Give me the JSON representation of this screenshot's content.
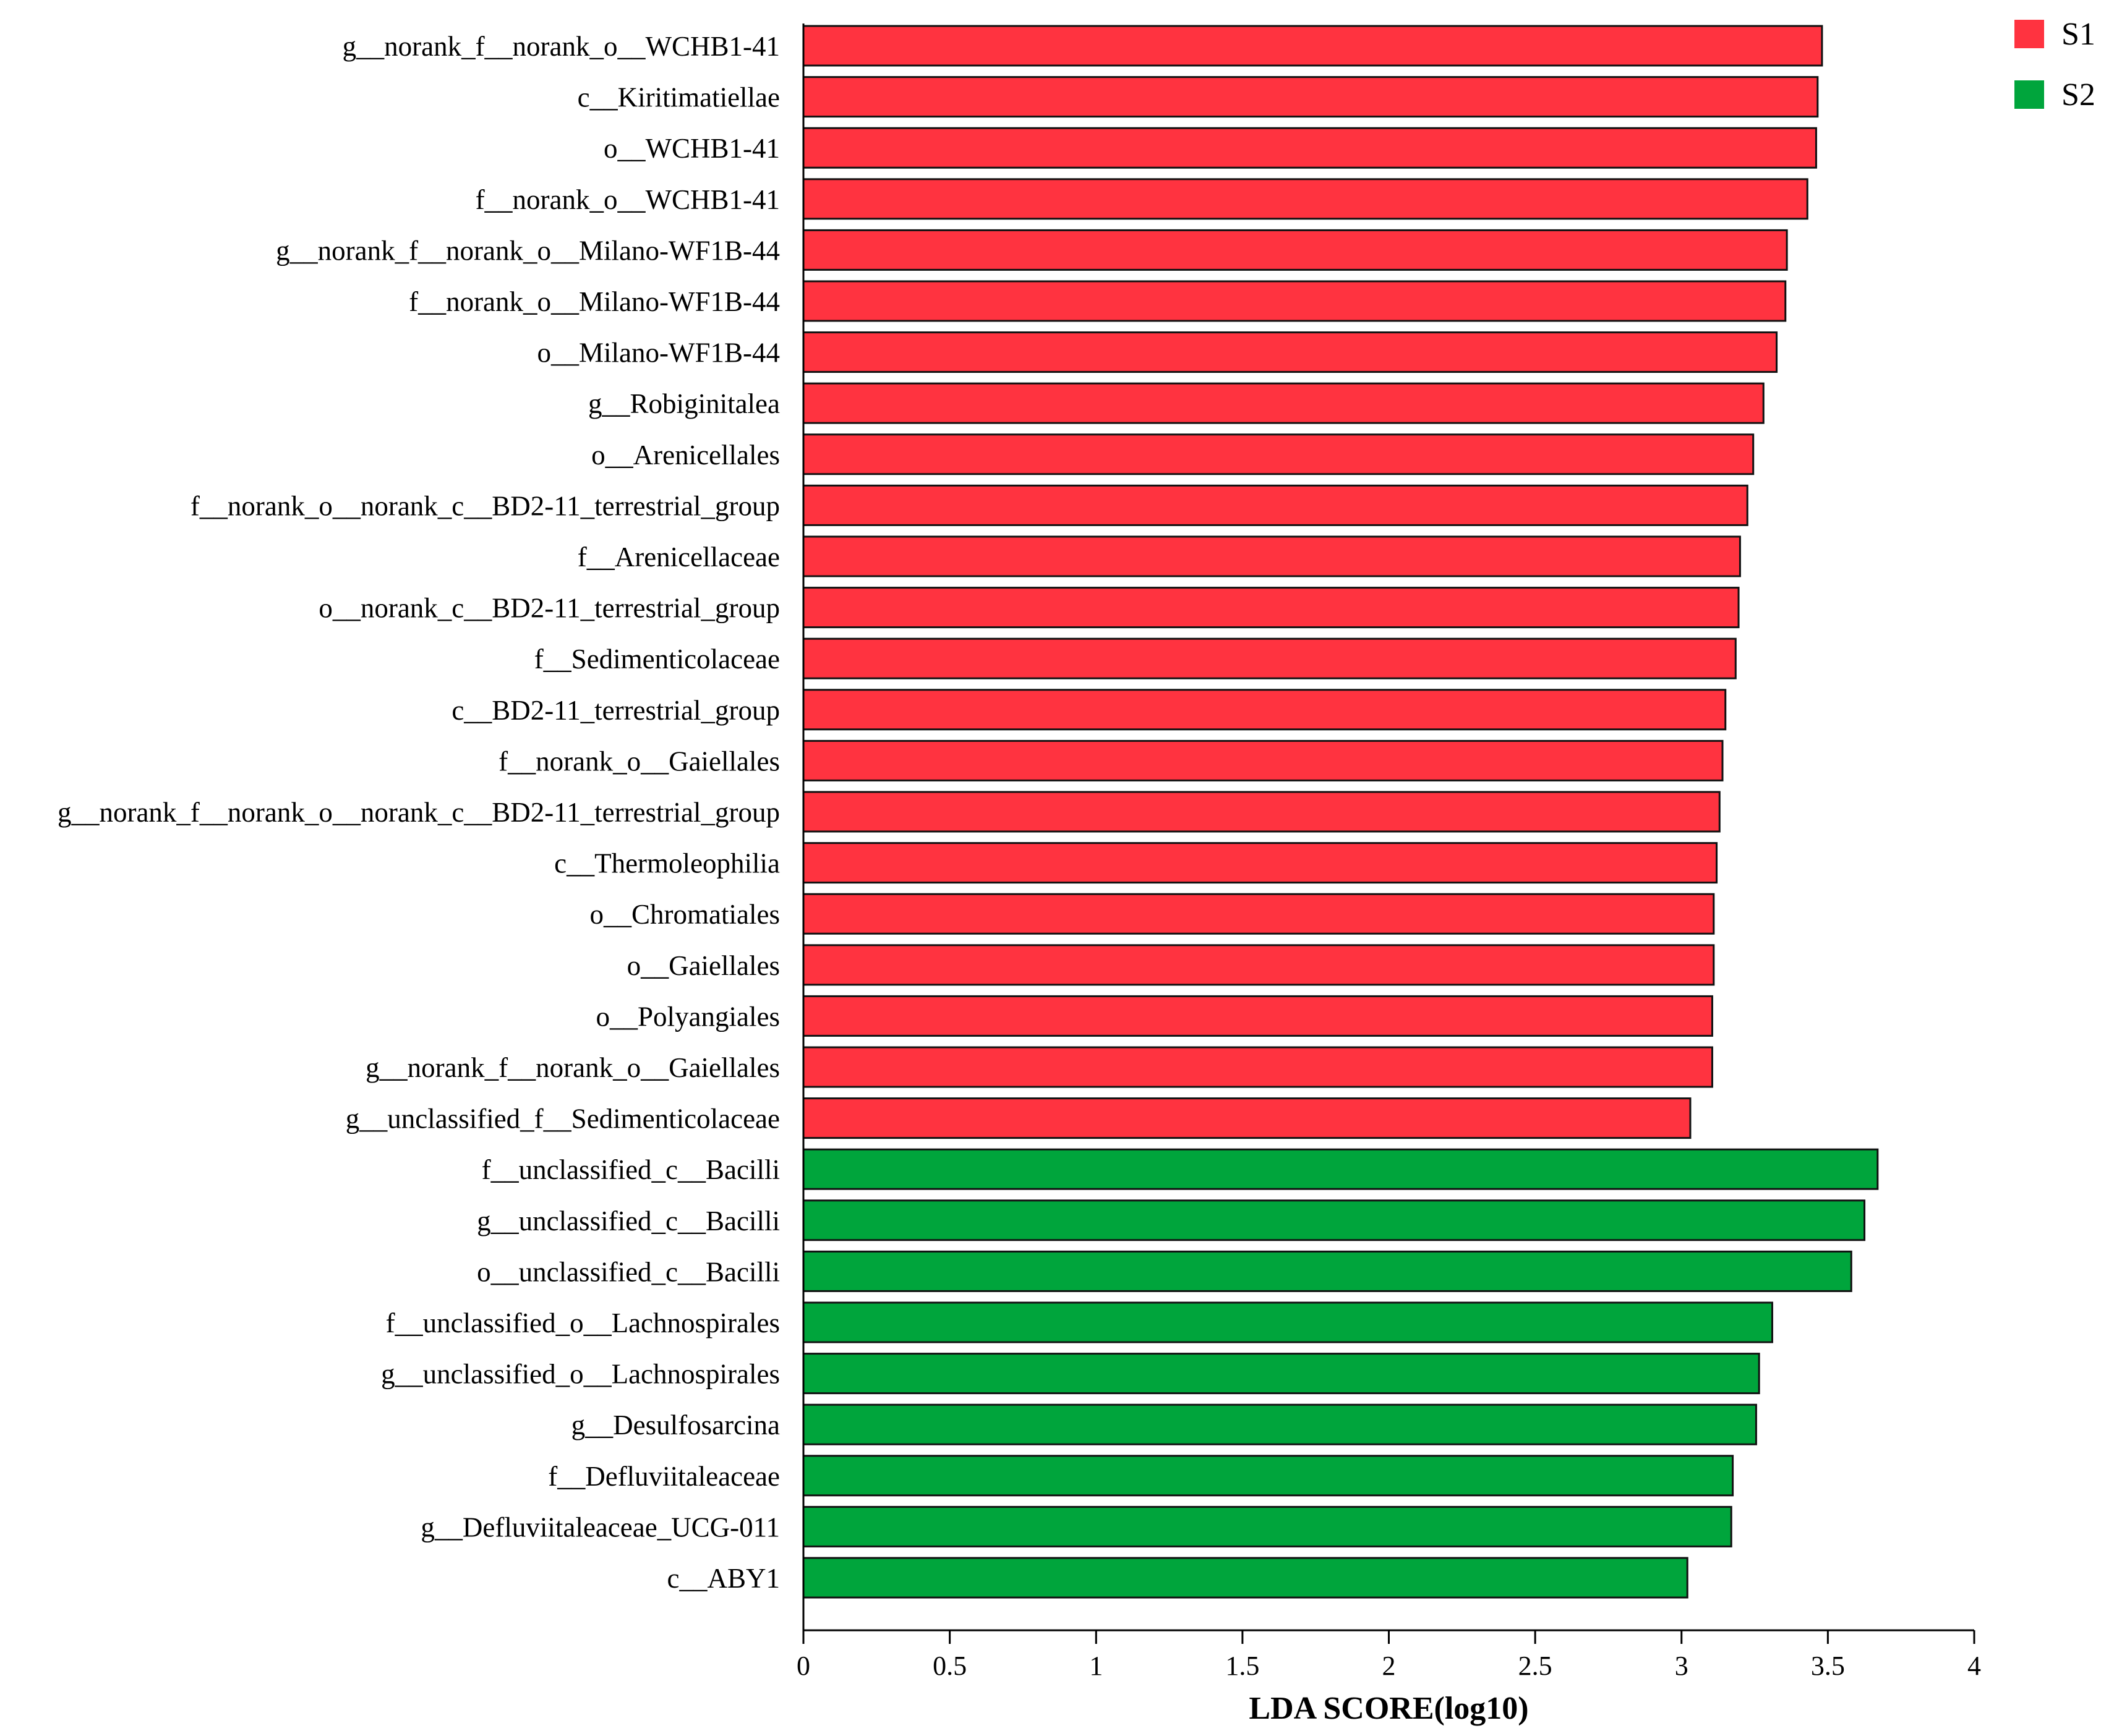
{
  "chart_data": {
    "type": "bar",
    "orientation": "horizontal",
    "title": "",
    "xlabel": "LDA SCORE(log10)",
    "ylabel": "",
    "xlim": [
      0,
      4
    ],
    "xticks": [
      "0",
      "0.5",
      "1",
      "1.5",
      "2",
      "2.5",
      "3",
      "3.5",
      "4"
    ],
    "grid": false,
    "legend_position": "top-right",
    "groups": [
      {
        "name": "S1",
        "color": "#ff3340"
      },
      {
        "name": "S2",
        "color": "#00a53c"
      }
    ],
    "bars": [
      {
        "label": "g__norank_f__norank_o__WCHB1-41",
        "value": 3.48,
        "group": "S1"
      },
      {
        "label": "c__Kiritimatiellae",
        "value": 3.465,
        "group": "S1"
      },
      {
        "label": "o__WCHB1-41",
        "value": 3.46,
        "group": "S1"
      },
      {
        "label": "f__norank_o__WCHB1-41",
        "value": 3.43,
        "group": "S1"
      },
      {
        "label": "g__norank_f__norank_o__Milano-WF1B-44",
        "value": 3.36,
        "group": "S1"
      },
      {
        "label": "f__norank_o__Milano-WF1B-44",
        "value": 3.355,
        "group": "S1"
      },
      {
        "label": "o__Milano-WF1B-44",
        "value": 3.325,
        "group": "S1"
      },
      {
        "label": "g__Robiginitalea",
        "value": 3.28,
        "group": "S1"
      },
      {
        "label": "o__Arenicellales",
        "value": 3.245,
        "group": "S1"
      },
      {
        "label": "f__norank_o__norank_c__BD2-11_terrestrial_group",
        "value": 3.225,
        "group": "S1"
      },
      {
        "label": "f__Arenicellaceae",
        "value": 3.2,
        "group": "S1"
      },
      {
        "label": "o__norank_c__BD2-11_terrestrial_group",
        "value": 3.195,
        "group": "S1"
      },
      {
        "label": "f__Sedimenticolaceae",
        "value": 3.185,
        "group": "S1"
      },
      {
        "label": "c__BD2-11_terrestrial_group",
        "value": 3.15,
        "group": "S1"
      },
      {
        "label": "f__norank_o__Gaiellales",
        "value": 3.14,
        "group": "S1"
      },
      {
        "label": "g__norank_f__norank_o__norank_c__BD2-11_terrestrial_group",
        "value": 3.13,
        "group": "S1"
      },
      {
        "label": "c__Thermoleophilia",
        "value": 3.12,
        "group": "S1"
      },
      {
        "label": "o__Chromatiales",
        "value": 3.11,
        "group": "S1"
      },
      {
        "label": "o__Gaiellales",
        "value": 3.11,
        "group": "S1"
      },
      {
        "label": "o__Polyangiales",
        "value": 3.105,
        "group": "S1"
      },
      {
        "label": "g__norank_f__norank_o__Gaiellales",
        "value": 3.105,
        "group": "S1"
      },
      {
        "label": "g__unclassified_f__Sedimenticolaceae",
        "value": 3.03,
        "group": "S1"
      },
      {
        "label": "f__unclassified_c__Bacilli",
        "value": 3.67,
        "group": "S2"
      },
      {
        "label": "g__unclassified_c__Bacilli",
        "value": 3.625,
        "group": "S2"
      },
      {
        "label": "o__unclassified_c__Bacilli",
        "value": 3.58,
        "group": "S2"
      },
      {
        "label": "f__unclassified_o__Lachnospirales",
        "value": 3.31,
        "group": "S2"
      },
      {
        "label": "g__unclassified_o__Lachnospirales",
        "value": 3.265,
        "group": "S2"
      },
      {
        "label": "g__Desulfosarcina",
        "value": 3.255,
        "group": "S2"
      },
      {
        "label": "f__Defluviitaleaceae",
        "value": 3.175,
        "group": "S2"
      },
      {
        "label": "g__Defluviitaleaceae_UCG-011",
        "value": 3.17,
        "group": "S2"
      },
      {
        "label": "c__ABY1",
        "value": 3.02,
        "group": "S2"
      }
    ]
  }
}
